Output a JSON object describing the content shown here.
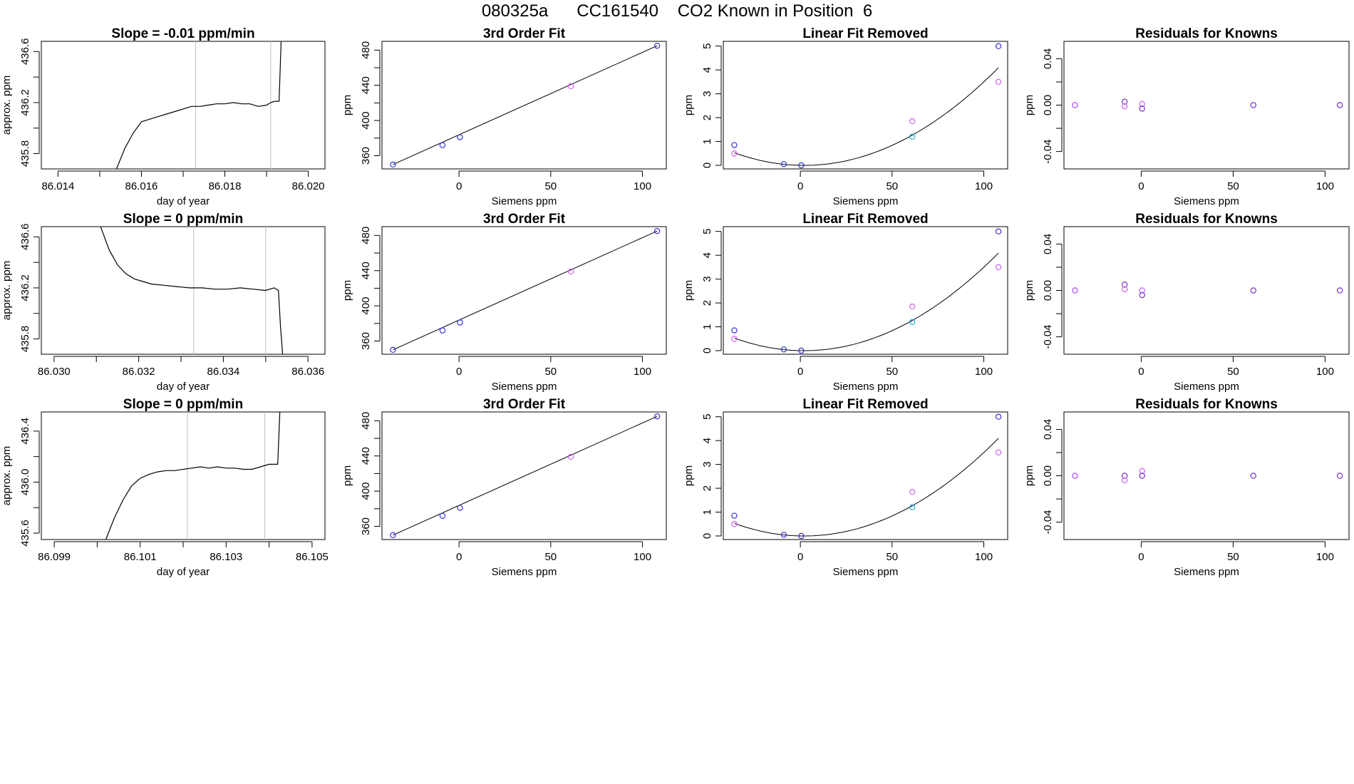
{
  "title": "080325a      CC161540    CO2 Known in Position  6",
  "colors": {
    "axis": "#000000",
    "trace": "#000000",
    "vline": "#bfbfbf",
    "blue": "#3333cc",
    "magenta": "#cc66ee",
    "cyan": "#22aadd",
    "purple": "#7733cc"
  },
  "chart_data": [
    {
      "type": "line",
      "row": 1,
      "title": "Slope =  -0.01  ppm/min",
      "xlabel": "day of year",
      "ylabel": "approx. ppm",
      "xlim": [
        86.0136,
        86.0204
      ],
      "ylim": [
        435.68,
        436.68
      ],
      "xticks": [
        86.014,
        86.015,
        86.016,
        86.017,
        86.018,
        86.019,
        86.02
      ],
      "xtick_labels": [
        "86.014",
        "",
        "86.016",
        "",
        "86.018",
        "",
        "86.020"
      ],
      "yticks": [
        435.8,
        436.0,
        436.2,
        436.4,
        436.6
      ],
      "ytick_labels": [
        "435.8",
        "",
        "436.2",
        "",
        "436.6"
      ],
      "vlines": [
        86.0173,
        86.0191
      ],
      "x": [
        86.0154,
        86.0156,
        86.0158,
        86.016,
        86.0162,
        86.0164,
        86.0166,
        86.0168,
        86.017,
        86.0172,
        86.0174,
        86.0176,
        86.0178,
        86.018,
        86.0182,
        86.0184,
        86.0186,
        86.0188,
        86.019,
        86.0191,
        86.0192,
        86.0193,
        86.01935
      ],
      "y": [
        435.68,
        435.84,
        435.96,
        436.05,
        436.07,
        436.09,
        436.11,
        436.13,
        436.15,
        436.17,
        436.17,
        436.18,
        436.19,
        436.19,
        436.2,
        436.19,
        436.19,
        436.17,
        436.18,
        436.2,
        436.21,
        436.21,
        436.68
      ]
    },
    {
      "type": "scatter",
      "row": 1,
      "title": "3rd Order Fit",
      "xlabel": "Siemens ppm",
      "ylabel": "ppm",
      "xlim": [
        -42,
        113
      ],
      "ylim": [
        345,
        490
      ],
      "xticks": [
        0,
        50,
        100
      ],
      "xtick_labels": [
        "0",
        "50",
        "100"
      ],
      "yticks": [
        360,
        380,
        400,
        420,
        440,
        460,
        480
      ],
      "ytick_labels": [
        "360",
        "",
        "400",
        "",
        "440",
        "",
        "480"
      ],
      "fit": {
        "x": [
          -36,
          108
        ],
        "y": [
          350,
          485
        ]
      },
      "points": [
        {
          "x": -36,
          "y": 350,
          "color": "blue"
        },
        {
          "x": -9,
          "y": 372,
          "color": "blue"
        },
        {
          "x": 0.5,
          "y": 381,
          "color": "blue"
        },
        {
          "x": 61,
          "y": 439,
          "color": "magenta"
        },
        {
          "x": 108,
          "y": 485,
          "color": "blue"
        }
      ]
    },
    {
      "type": "scatter",
      "row": 1,
      "title": "Linear Fit Removed",
      "xlabel": "Siemens ppm",
      "ylabel": "ppm",
      "xlim": [
        -42,
        113
      ],
      "ylim": [
        -0.15,
        5.2
      ],
      "xticks": [
        0,
        50,
        100
      ],
      "xtick_labels": [
        "0",
        "50",
        "100"
      ],
      "yticks": [
        0,
        1,
        2,
        3,
        4,
        5
      ],
      "ytick_labels": [
        "0",
        "1",
        "2",
        "3",
        "4",
        "5"
      ],
      "fit": {
        "type": "quadratic",
        "a": 0.000365,
        "b": -0.0015,
        "c": 0,
        "xmin": -36,
        "xmax": 108
      },
      "points": [
        {
          "x": -36,
          "y": 0.85,
          "color": "blue"
        },
        {
          "x": -36,
          "y": 0.5,
          "color": "magenta"
        },
        {
          "x": -9,
          "y": 0.05,
          "color": "blue"
        },
        {
          "x": 0.5,
          "y": 0,
          "color": "blue"
        },
        {
          "x": 61,
          "y": 1.85,
          "color": "magenta"
        },
        {
          "x": 61,
          "y": 1.2,
          "color": "cyan"
        },
        {
          "x": 108,
          "y": 5,
          "color": "blue"
        },
        {
          "x": 108,
          "y": 3.5,
          "color": "magenta"
        }
      ]
    },
    {
      "type": "scatter",
      "row": 1,
      "title": "Residuals for Knowns",
      "xlabel": "Siemens ppm",
      "ylabel": "ppm",
      "xlim": [
        -42,
        113
      ],
      "ylim": [
        -0.055,
        0.055
      ],
      "xticks": [
        0,
        50,
        100
      ],
      "xtick_labels": [
        "0",
        "50",
        "100"
      ],
      "yticks": [
        -0.04,
        -0.02,
        0,
        0.02,
        0.04
      ],
      "ytick_labels": [
        "-0.04",
        "",
        "0.00",
        "",
        "0.04"
      ],
      "points": [
        {
          "x": -36,
          "y": 0,
          "color": "blue"
        },
        {
          "x": -36,
          "y": 0,
          "color": "magenta"
        },
        {
          "x": -9,
          "y": 0.003,
          "color": "purple"
        },
        {
          "x": -9,
          "y": -0.001,
          "color": "magenta"
        },
        {
          "x": 0.5,
          "y": 0.001,
          "color": "magenta"
        },
        {
          "x": 0.5,
          "y": -0.003,
          "color": "purple"
        },
        {
          "x": 61,
          "y": 0,
          "color": "purple"
        },
        {
          "x": 108,
          "y": 0,
          "color": "purple"
        }
      ]
    },
    {
      "type": "line",
      "row": 2,
      "title": "Slope =  0  ppm/min",
      "xlabel": "day of year",
      "ylabel": "approx. ppm",
      "xlim": [
        86.0297,
        86.0364
      ],
      "ylim": [
        435.68,
        436.68
      ],
      "xticks": [
        86.03,
        86.031,
        86.032,
        86.033,
        86.034,
        86.035,
        86.036
      ],
      "xtick_labels": [
        "86.030",
        "",
        "86.032",
        "",
        "86.034",
        "",
        "86.036"
      ],
      "yticks": [
        435.8,
        436.0,
        436.2,
        436.4,
        436.6
      ],
      "ytick_labels": [
        "435.8",
        "",
        "436.2",
        "",
        "436.6"
      ],
      "vlines": [
        86.0333,
        86.035
      ],
      "x": [
        86.0311,
        86.0313,
        86.0315,
        86.0317,
        86.0319,
        86.0321,
        86.0323,
        86.0326,
        86.0329,
        86.0332,
        86.0335,
        86.0338,
        86.0341,
        86.0344,
        86.0347,
        86.035,
        86.0352,
        86.0353,
        86.03535,
        86.0354
      ],
      "y": [
        436.68,
        436.5,
        436.38,
        436.31,
        436.27,
        436.25,
        436.23,
        436.22,
        436.21,
        436.2,
        436.2,
        436.19,
        436.19,
        436.2,
        436.19,
        436.18,
        436.2,
        436.18,
        435.9,
        435.68
      ]
    },
    {
      "type": "scatter",
      "row": 2,
      "title": "3rd Order Fit",
      "xlabel": "Siemens ppm",
      "ylabel": "ppm",
      "xlim": [
        -42,
        113
      ],
      "ylim": [
        345,
        490
      ],
      "xticks": [
        0,
        50,
        100
      ],
      "xtick_labels": [
        "0",
        "50",
        "100"
      ],
      "yticks": [
        360,
        380,
        400,
        420,
        440,
        460,
        480
      ],
      "ytick_labels": [
        "360",
        "",
        "400",
        "",
        "440",
        "",
        "480"
      ],
      "fit": {
        "x": [
          -36,
          108
        ],
        "y": [
          350,
          485
        ]
      },
      "points": [
        {
          "x": -36,
          "y": 350,
          "color": "blue"
        },
        {
          "x": -9,
          "y": 372,
          "color": "blue"
        },
        {
          "x": 0.5,
          "y": 381,
          "color": "blue"
        },
        {
          "x": 61,
          "y": 439,
          "color": "magenta"
        },
        {
          "x": 108,
          "y": 485,
          "color": "blue"
        }
      ]
    },
    {
      "type": "scatter",
      "row": 2,
      "title": "Linear Fit Removed",
      "xlabel": "Siemens ppm",
      "ylabel": "ppm",
      "xlim": [
        -42,
        113
      ],
      "ylim": [
        -0.15,
        5.2
      ],
      "xticks": [
        0,
        50,
        100
      ],
      "xtick_labels": [
        "0",
        "50",
        "100"
      ],
      "yticks": [
        0,
        1,
        2,
        3,
        4,
        5
      ],
      "ytick_labels": [
        "0",
        "1",
        "2",
        "3",
        "4",
        "5"
      ],
      "fit": {
        "type": "quadratic",
        "a": 0.000365,
        "b": -0.0015,
        "c": 0,
        "xmin": -36,
        "xmax": 108
      },
      "points": [
        {
          "x": -36,
          "y": 0.85,
          "color": "blue"
        },
        {
          "x": -36,
          "y": 0.5,
          "color": "magenta"
        },
        {
          "x": -9,
          "y": 0.05,
          "color": "blue"
        },
        {
          "x": 0.5,
          "y": 0,
          "color": "blue"
        },
        {
          "x": 61,
          "y": 1.85,
          "color": "magenta"
        },
        {
          "x": 61,
          "y": 1.2,
          "color": "cyan"
        },
        {
          "x": 108,
          "y": 5,
          "color": "blue"
        },
        {
          "x": 108,
          "y": 3.5,
          "color": "magenta"
        }
      ]
    },
    {
      "type": "scatter",
      "row": 2,
      "title": "Residuals for Knowns",
      "xlabel": "Siemens ppm",
      "ylabel": "ppm",
      "xlim": [
        -42,
        113
      ],
      "ylim": [
        -0.055,
        0.055
      ],
      "xticks": [
        0,
        50,
        100
      ],
      "xtick_labels": [
        "0",
        "50",
        "100"
      ],
      "yticks": [
        -0.04,
        -0.02,
        0,
        0.02,
        0.04
      ],
      "ytick_labels": [
        "-0.04",
        "",
        "0.00",
        "",
        "0.04"
      ],
      "points": [
        {
          "x": -36,
          "y": 0,
          "color": "blue"
        },
        {
          "x": -36,
          "y": 0,
          "color": "magenta"
        },
        {
          "x": -9,
          "y": 0.005,
          "color": "purple"
        },
        {
          "x": -9,
          "y": 0.001,
          "color": "magenta"
        },
        {
          "x": 0.5,
          "y": 0,
          "color": "magenta"
        },
        {
          "x": 0.5,
          "y": -0.004,
          "color": "purple"
        },
        {
          "x": 61,
          "y": 0,
          "color": "purple"
        },
        {
          "x": 108,
          "y": 0,
          "color": "purple"
        }
      ]
    },
    {
      "type": "line",
      "row": 3,
      "title": "Slope =  0  ppm/min",
      "xlabel": "day of year",
      "ylabel": "approx. ppm",
      "xlim": [
        86.0987,
        86.1053
      ],
      "ylim": [
        435.55,
        436.55
      ],
      "xticks": [
        86.099,
        86.1,
        86.101,
        86.102,
        86.103,
        86.104,
        86.105
      ],
      "xtick_labels": [
        "86.099",
        "",
        "86.101",
        "",
        "86.103",
        "",
        "86.105"
      ],
      "yticks": [
        435.6,
        435.8,
        436.0,
        436.2,
        436.4
      ],
      "ytick_labels": [
        "435.6",
        "",
        "436.0",
        "",
        "436.4"
      ],
      "vlines": [
        86.1021,
        86.1039
      ],
      "x": [
        86.1002,
        86.1004,
        86.1006,
        86.1008,
        86.101,
        86.1012,
        86.1014,
        86.1016,
        86.1018,
        86.102,
        86.1022,
        86.1024,
        86.1026,
        86.1028,
        86.103,
        86.1032,
        86.1034,
        86.1036,
        86.1038,
        86.104,
        86.1041,
        86.1042,
        86.10425
      ],
      "y": [
        435.55,
        435.72,
        435.86,
        435.97,
        436.03,
        436.06,
        436.08,
        436.09,
        436.09,
        436.1,
        436.11,
        436.12,
        436.11,
        436.12,
        436.11,
        436.11,
        436.1,
        436.1,
        436.12,
        436.14,
        436.14,
        436.14,
        436.55
      ]
    },
    {
      "type": "scatter",
      "row": 3,
      "title": "3rd Order Fit",
      "xlabel": "Siemens ppm",
      "ylabel": "ppm",
      "xlim": [
        -42,
        113
      ],
      "ylim": [
        345,
        490
      ],
      "xticks": [
        0,
        50,
        100
      ],
      "xtick_labels": [
        "0",
        "50",
        "100"
      ],
      "yticks": [
        360,
        380,
        400,
        420,
        440,
        460,
        480
      ],
      "ytick_labels": [
        "360",
        "",
        "400",
        "",
        "440",
        "",
        "480"
      ],
      "fit": {
        "x": [
          -36,
          108
        ],
        "y": [
          350,
          485
        ]
      },
      "points": [
        {
          "x": -36,
          "y": 350,
          "color": "blue"
        },
        {
          "x": -9,
          "y": 372,
          "color": "blue"
        },
        {
          "x": 0.5,
          "y": 381,
          "color": "blue"
        },
        {
          "x": 61,
          "y": 439,
          "color": "magenta"
        },
        {
          "x": 108,
          "y": 485,
          "color": "blue"
        }
      ]
    },
    {
      "type": "scatter",
      "row": 3,
      "title": "Linear Fit Removed",
      "xlabel": "Siemens ppm",
      "ylabel": "ppm",
      "xlim": [
        -42,
        113
      ],
      "ylim": [
        -0.15,
        5.2
      ],
      "xticks": [
        0,
        50,
        100
      ],
      "xtick_labels": [
        "0",
        "50",
        "100"
      ],
      "yticks": [
        0,
        1,
        2,
        3,
        4,
        5
      ],
      "ytick_labels": [
        "0",
        "1",
        "2",
        "3",
        "4",
        "5"
      ],
      "fit": {
        "type": "quadratic",
        "a": 0.000365,
        "b": -0.0015,
        "c": 0,
        "xmin": -36,
        "xmax": 108
      },
      "points": [
        {
          "x": -36,
          "y": 0.85,
          "color": "blue"
        },
        {
          "x": -36,
          "y": 0.5,
          "color": "magenta"
        },
        {
          "x": -9,
          "y": 0.05,
          "color": "blue"
        },
        {
          "x": 0.5,
          "y": 0,
          "color": "blue"
        },
        {
          "x": 61,
          "y": 1.85,
          "color": "magenta"
        },
        {
          "x": 61,
          "y": 1.2,
          "color": "cyan"
        },
        {
          "x": 108,
          "y": 5,
          "color": "blue"
        },
        {
          "x": 108,
          "y": 3.5,
          "color": "magenta"
        }
      ]
    },
    {
      "type": "scatter",
      "row": 3,
      "title": "Residuals for Knowns",
      "xlabel": "Siemens ppm",
      "ylabel": "ppm",
      "xlim": [
        -42,
        113
      ],
      "ylim": [
        -0.055,
        0.055
      ],
      "xticks": [
        0,
        50,
        100
      ],
      "xtick_labels": [
        "0",
        "50",
        "100"
      ],
      "yticks": [
        -0.04,
        -0.02,
        0,
        0.02,
        0.04
      ],
      "ytick_labels": [
        "-0.04",
        "",
        "0.00",
        "",
        "0.04"
      ],
      "points": [
        {
          "x": -36,
          "y": 0,
          "color": "blue"
        },
        {
          "x": -36,
          "y": 0,
          "color": "magenta"
        },
        {
          "x": -9,
          "y": 0,
          "color": "purple"
        },
        {
          "x": -9,
          "y": -0.004,
          "color": "magenta"
        },
        {
          "x": 0.5,
          "y": 0.004,
          "color": "magenta"
        },
        {
          "x": 0.5,
          "y": 0,
          "color": "purple"
        },
        {
          "x": 61,
          "y": 0,
          "color": "purple"
        },
        {
          "x": 108,
          "y": 0,
          "color": "purple"
        }
      ]
    }
  ]
}
